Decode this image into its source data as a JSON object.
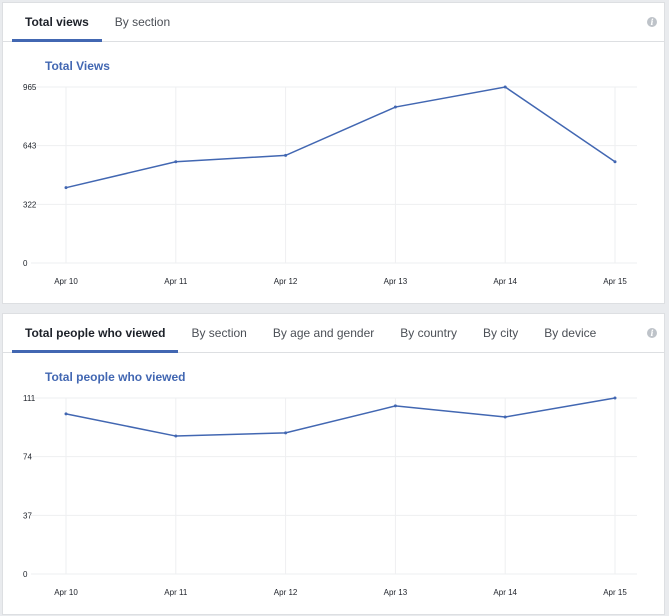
{
  "panels": [
    {
      "tabs": [
        "Total views",
        "By section"
      ],
      "active_tab": 0,
      "info_icon": "info-icon",
      "chart_data": {
        "type": "line",
        "title": "Total Views",
        "categories": [
          "Apr 10",
          "Apr 11",
          "Apr 12",
          "Apr 13",
          "Apr 14",
          "Apr 15"
        ],
        "series": [
          {
            "values": [
              413,
              555,
              590,
              855,
              965,
              555
            ],
            "color": "#4267b2"
          }
        ],
        "y_ticks": [
          "0",
          "322",
          "643",
          "965"
        ],
        "ylim": [
          0,
          965
        ],
        "grid": true
      }
    },
    {
      "tabs": [
        "Total people who viewed",
        "By section",
        "By age and gender",
        "By country",
        "By city",
        "By device"
      ],
      "active_tab": 0,
      "info_icon": "info-icon",
      "chart_data": {
        "type": "line",
        "title": "Total people who viewed",
        "categories": [
          "Apr 10",
          "Apr 11",
          "Apr 12",
          "Apr 13",
          "Apr 14",
          "Apr 15"
        ],
        "series": [
          {
            "values": [
              101,
              87,
              89,
              106,
              99,
              111
            ],
            "color": "#4267b2"
          }
        ],
        "y_ticks": [
          "0",
          "37",
          "74",
          "111"
        ],
        "ylim": [
          0,
          111
        ],
        "grid": true
      }
    }
  ]
}
